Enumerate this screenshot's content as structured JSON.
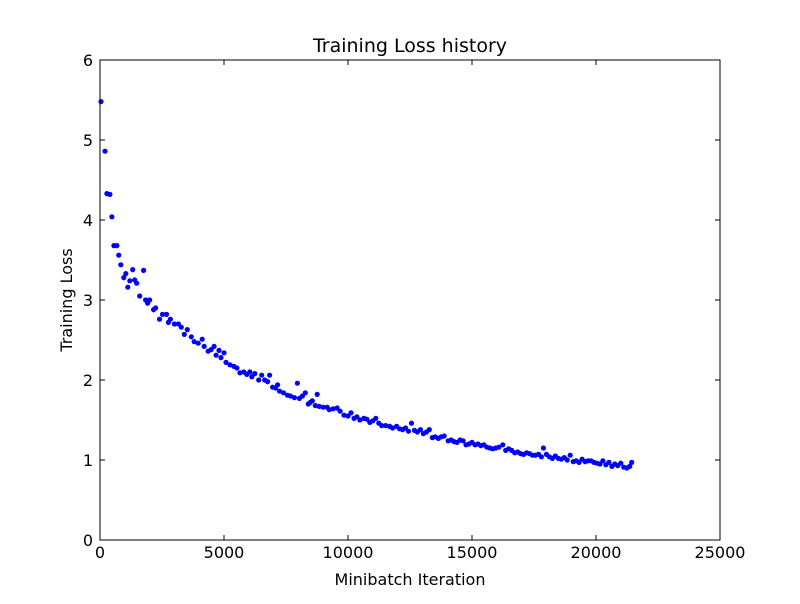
{
  "chart_data": {
    "type": "scatter",
    "title": "Training Loss history",
    "xlabel": "Minibatch Iteration",
    "ylabel": "Training Loss",
    "xlim": [
      0,
      25000
    ],
    "ylim": [
      0,
      6
    ],
    "xticks": [
      0,
      5000,
      10000,
      15000,
      20000,
      25000
    ],
    "xtick_labels": [
      "0",
      "5000",
      "10000",
      "15000",
      "20000",
      "25000"
    ],
    "yticks": [
      0,
      1,
      2,
      3,
      4,
      5,
      6
    ],
    "ytick_labels": [
      "0",
      "1",
      "2",
      "3",
      "4",
      "5",
      "6"
    ],
    "grid": false,
    "legend": "none",
    "marker_color": "#0000ff",
    "series": [
      {
        "points": [
          [
            40,
            5.48
          ],
          [
            200,
            4.86
          ],
          [
            280,
            4.33
          ],
          [
            400,
            4.32
          ],
          [
            480,
            4.04
          ],
          [
            560,
            3.68
          ],
          [
            680,
            3.68
          ],
          [
            760,
            3.56
          ],
          [
            840,
            3.44
          ],
          [
            960,
            3.28
          ],
          [
            1040,
            3.33
          ],
          [
            1120,
            3.16
          ],
          [
            1200,
            3.24
          ],
          [
            1320,
            3.38
          ],
          [
            1400,
            3.25
          ],
          [
            1480,
            3.21
          ],
          [
            1600,
            3.05
          ],
          [
            1760,
            3.37
          ],
          [
            1840,
            3.0
          ],
          [
            1920,
            2.96
          ],
          [
            2000,
            3.0
          ],
          [
            2160,
            2.88
          ],
          [
            2240,
            2.9
          ],
          [
            2400,
            2.76
          ],
          [
            2520,
            2.82
          ],
          [
            2680,
            2.82
          ],
          [
            2760,
            2.72
          ],
          [
            2840,
            2.76
          ],
          [
            3000,
            2.7
          ],
          [
            3160,
            2.7
          ],
          [
            3280,
            2.66
          ],
          [
            3400,
            2.57
          ],
          [
            3520,
            2.63
          ],
          [
            3680,
            2.54
          ],
          [
            3800,
            2.48
          ],
          [
            3960,
            2.46
          ],
          [
            4120,
            2.51
          ],
          [
            4200,
            2.42
          ],
          [
            4360,
            2.36
          ],
          [
            4480,
            2.38
          ],
          [
            4600,
            2.42
          ],
          [
            4680,
            2.31
          ],
          [
            4800,
            2.37
          ],
          [
            4880,
            2.28
          ],
          [
            5000,
            2.34
          ],
          [
            5080,
            2.22
          ],
          [
            5240,
            2.19
          ],
          [
            5400,
            2.17
          ],
          [
            5520,
            2.15
          ],
          [
            5640,
            2.09
          ],
          [
            5800,
            2.1
          ],
          [
            5920,
            2.07
          ],
          [
            6040,
            2.1
          ],
          [
            6120,
            2.04
          ],
          [
            6240,
            2.08
          ],
          [
            6400,
            2.0
          ],
          [
            6520,
            2.06
          ],
          [
            6640,
            2.0
          ],
          [
            6760,
            1.98
          ],
          [
            6840,
            2.06
          ],
          [
            6960,
            1.91
          ],
          [
            7080,
            1.9
          ],
          [
            7160,
            1.94
          ],
          [
            7240,
            1.86
          ],
          [
            7400,
            1.84
          ],
          [
            7560,
            1.81
          ],
          [
            7680,
            1.8
          ],
          [
            7840,
            1.78
          ],
          [
            7960,
            1.96
          ],
          [
            8040,
            1.77
          ],
          [
            8160,
            1.8
          ],
          [
            8280,
            1.84
          ],
          [
            8400,
            1.7
          ],
          [
            8480,
            1.72
          ],
          [
            8560,
            1.74
          ],
          [
            8680,
            1.68
          ],
          [
            8760,
            1.82
          ],
          [
            8840,
            1.67
          ],
          [
            9000,
            1.66
          ],
          [
            9160,
            1.66
          ],
          [
            9240,
            1.63
          ],
          [
            9400,
            1.64
          ],
          [
            9560,
            1.65
          ],
          [
            9680,
            1.61
          ],
          [
            9840,
            1.56
          ],
          [
            10000,
            1.55
          ],
          [
            10120,
            1.59
          ],
          [
            10240,
            1.52
          ],
          [
            10360,
            1.54
          ],
          [
            10480,
            1.5
          ],
          [
            10640,
            1.52
          ],
          [
            10760,
            1.51
          ],
          [
            10880,
            1.47
          ],
          [
            11000,
            1.49
          ],
          [
            11120,
            1.52
          ],
          [
            11240,
            1.46
          ],
          [
            11360,
            1.43
          ],
          [
            11520,
            1.43
          ],
          [
            11680,
            1.42
          ],
          [
            11800,
            1.4
          ],
          [
            11960,
            1.42
          ],
          [
            12080,
            1.39
          ],
          [
            12200,
            1.38
          ],
          [
            12320,
            1.4
          ],
          [
            12440,
            1.36
          ],
          [
            12560,
            1.46
          ],
          [
            12680,
            1.37
          ],
          [
            12800,
            1.35
          ],
          [
            12920,
            1.38
          ],
          [
            13040,
            1.33
          ],
          [
            13160,
            1.35
          ],
          [
            13280,
            1.38
          ],
          [
            13400,
            1.28
          ],
          [
            13520,
            1.29
          ],
          [
            13640,
            1.27
          ],
          [
            13760,
            1.29
          ],
          [
            13880,
            1.3
          ],
          [
            14040,
            1.24
          ],
          [
            14160,
            1.25
          ],
          [
            14280,
            1.23
          ],
          [
            14400,
            1.22
          ],
          [
            14520,
            1.25
          ],
          [
            14640,
            1.24
          ],
          [
            14760,
            1.19
          ],
          [
            14880,
            1.2
          ],
          [
            15000,
            1.22
          ],
          [
            15120,
            1.19
          ],
          [
            15240,
            1.2
          ],
          [
            15360,
            1.18
          ],
          [
            15480,
            1.19
          ],
          [
            15600,
            1.16
          ],
          [
            15720,
            1.15
          ],
          [
            15840,
            1.14
          ],
          [
            15960,
            1.15
          ],
          [
            16080,
            1.16
          ],
          [
            16240,
            1.19
          ],
          [
            16360,
            1.12
          ],
          [
            16480,
            1.14
          ],
          [
            16600,
            1.12
          ],
          [
            16720,
            1.09
          ],
          [
            16840,
            1.1
          ],
          [
            16960,
            1.08
          ],
          [
            17080,
            1.07
          ],
          [
            17200,
            1.09
          ],
          [
            17320,
            1.08
          ],
          [
            17440,
            1.06
          ],
          [
            17560,
            1.06
          ],
          [
            17680,
            1.07
          ],
          [
            17800,
            1.04
          ],
          [
            17880,
            1.15
          ],
          [
            18000,
            1.07
          ],
          [
            18120,
            1.04
          ],
          [
            18240,
            1.02
          ],
          [
            18360,
            1.05
          ],
          [
            18480,
            1.02
          ],
          [
            18600,
            1.01
          ],
          [
            18720,
            1.03
          ],
          [
            18840,
            1.0
          ],
          [
            18960,
            1.06
          ],
          [
            19080,
            0.98
          ],
          [
            19200,
            0.99
          ],
          [
            19320,
            0.97
          ],
          [
            19440,
            1.01
          ],
          [
            19560,
            0.98
          ],
          [
            19680,
            0.99
          ],
          [
            19800,
            0.99
          ],
          [
            19920,
            0.97
          ],
          [
            20040,
            0.96
          ],
          [
            20160,
            0.95
          ],
          [
            20280,
            0.99
          ],
          [
            20400,
            0.94
          ],
          [
            20520,
            0.97
          ],
          [
            20640,
            0.92
          ],
          [
            20760,
            0.95
          ],
          [
            20880,
            0.93
          ],
          [
            21000,
            0.96
          ],
          [
            21120,
            0.91
          ],
          [
            21240,
            0.9
          ],
          [
            21360,
            0.92
          ],
          [
            21440,
            0.97
          ]
        ]
      }
    ]
  }
}
